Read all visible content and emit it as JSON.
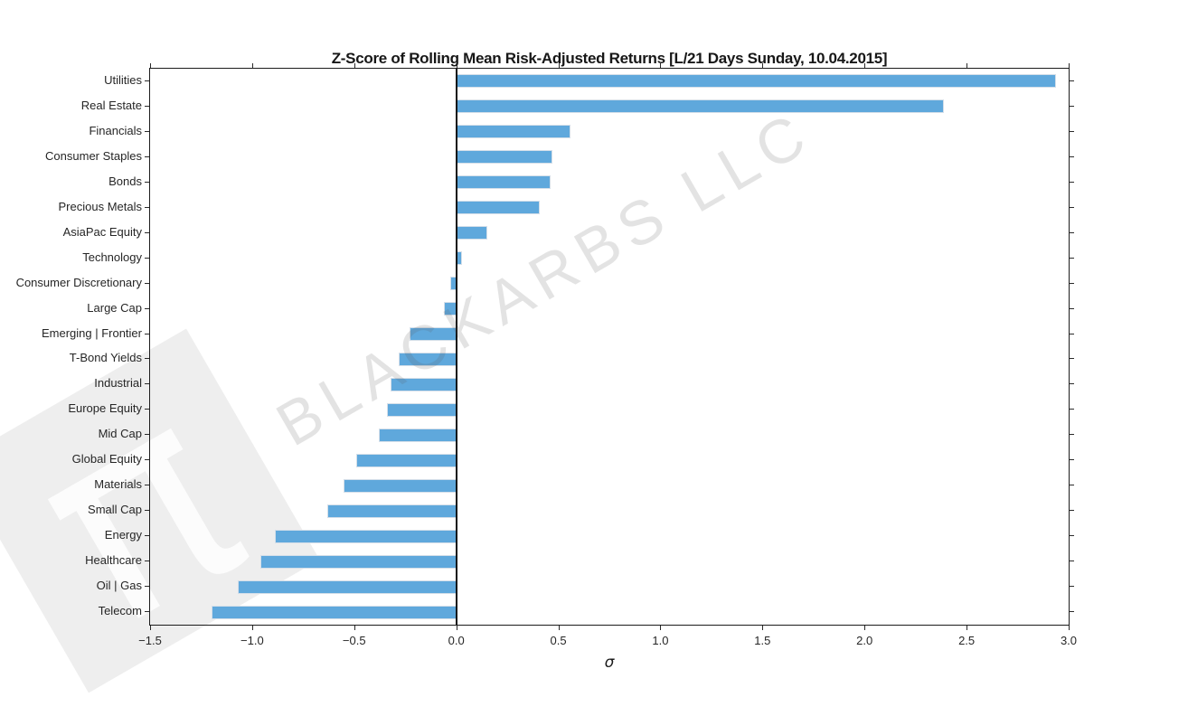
{
  "watermark": {
    "text": "BLACKARBS LLC",
    "pi_symbol": "π"
  },
  "chart_data": {
    "type": "bar",
    "orientation": "horizontal",
    "title": "Z-Score of Rolling Mean Risk-Adjusted Returns [L/21 Days Sunday, 10.04.2015]",
    "xlabel": "σ",
    "xlim": [
      -1.5,
      3.0
    ],
    "grid": false,
    "legend": null,
    "bar_color": "#5fa8dc",
    "bar_edge_color": "#d5dfe9",
    "zero_line_color": "#111111",
    "categories": [
      "Utilities",
      "Real Estate",
      "Financials",
      "Consumer Staples",
      "Bonds",
      "Precious Metals",
      "AsiaPac Equity",
      "Technology",
      "Consumer Discretionary",
      "Large Cap",
      "Emerging | Frontier",
      "T-Bond Yields",
      "Industrial",
      "Europe Equity",
      "Mid Cap",
      "Global Equity",
      "Materials",
      "Small Cap",
      "Energy",
      "Healthcare",
      "Oil | Gas",
      "Telecom"
    ],
    "values": [
      2.94,
      2.39,
      0.56,
      0.47,
      0.46,
      0.41,
      0.15,
      0.03,
      -0.03,
      -0.06,
      -0.23,
      -0.28,
      -0.32,
      -0.34,
      -0.38,
      -0.49,
      -0.55,
      -0.63,
      -0.89,
      -0.96,
      -1.07,
      -1.2
    ],
    "xticks": [
      {
        "value": -1.5,
        "label": "−1.5"
      },
      {
        "value": -1.0,
        "label": "−1.0"
      },
      {
        "value": -0.5,
        "label": "−0.5"
      },
      {
        "value": 0.0,
        "label": "0.0"
      },
      {
        "value": 0.5,
        "label": "0.5"
      },
      {
        "value": 1.0,
        "label": "1.0"
      },
      {
        "value": 1.5,
        "label": "1.5"
      },
      {
        "value": 2.0,
        "label": "2.0"
      },
      {
        "value": 2.5,
        "label": "2.5"
      },
      {
        "value": 3.0,
        "label": "3.0"
      }
    ]
  }
}
